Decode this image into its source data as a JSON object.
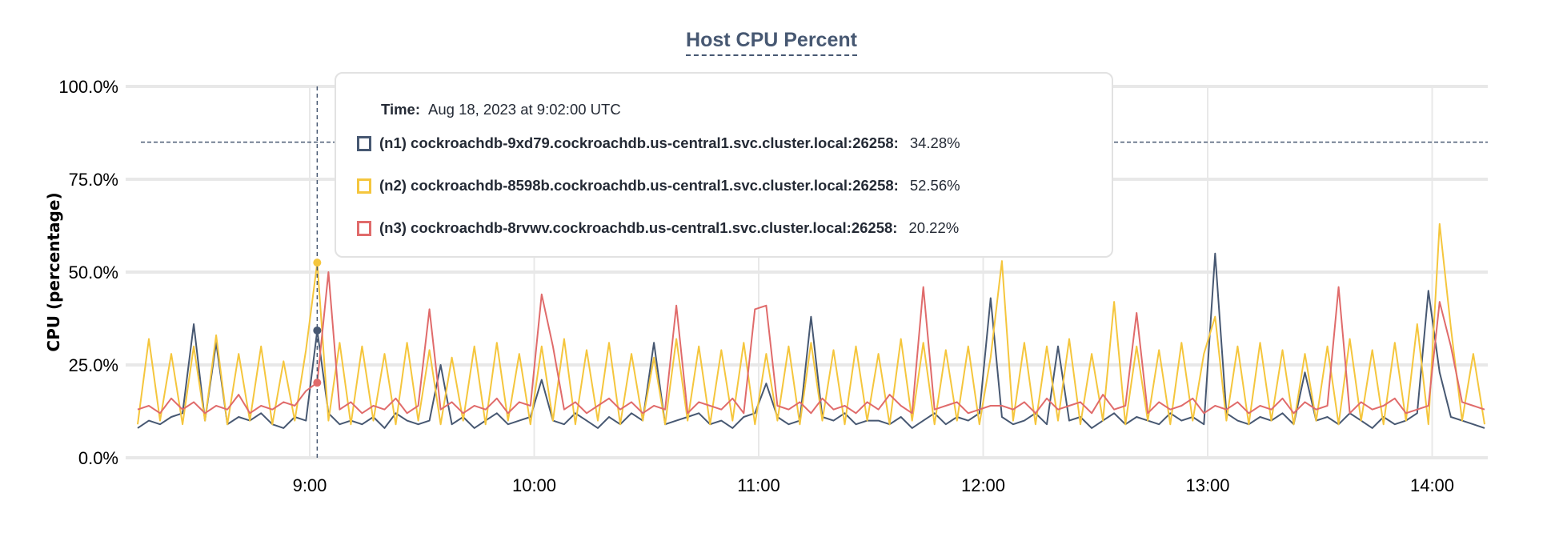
{
  "chart_data": {
    "type": "line",
    "title": "Host CPU Percent",
    "ylabel": "CPU (percentage)",
    "xlabel": "",
    "ylim": [
      0,
      100
    ],
    "yticks": [
      "0.0%",
      "25.0%",
      "50.0%",
      "75.0%",
      "100.0%"
    ],
    "xticks": [
      "9:00",
      "10:00",
      "11:00",
      "12:00",
      "13:00",
      "14:00"
    ],
    "xrange": [
      "08:10",
      "14:17"
    ],
    "threshold": 85,
    "grid": true,
    "hover_time": "09:02",
    "x": [
      "08:14",
      "08:17",
      "08:20",
      "08:23",
      "08:26",
      "08:29",
      "08:32",
      "08:35",
      "08:38",
      "08:41",
      "08:44",
      "08:47",
      "08:50",
      "08:53",
      "08:56",
      "08:59",
      "09:02",
      "09:05",
      "09:08",
      "09:11",
      "09:14",
      "09:17",
      "09:20",
      "09:23",
      "09:26",
      "09:29",
      "09:32",
      "09:35",
      "09:38",
      "09:41",
      "09:44",
      "09:47",
      "09:50",
      "09:53",
      "09:56",
      "09:59",
      "10:02",
      "10:05",
      "10:08",
      "10:11",
      "10:14",
      "10:17",
      "10:20",
      "10:23",
      "10:26",
      "10:29",
      "10:32",
      "10:35",
      "10:38",
      "10:41",
      "10:44",
      "10:47",
      "10:50",
      "10:53",
      "10:56",
      "10:59",
      "11:02",
      "11:05",
      "11:08",
      "11:11",
      "11:14",
      "11:17",
      "11:20",
      "11:23",
      "11:26",
      "11:29",
      "11:32",
      "11:35",
      "11:38",
      "11:41",
      "11:44",
      "11:47",
      "11:50",
      "11:53",
      "11:56",
      "11:59",
      "12:02",
      "12:05",
      "12:08",
      "12:11",
      "12:14",
      "12:17",
      "12:20",
      "12:23",
      "12:26",
      "12:29",
      "12:32",
      "12:35",
      "12:38",
      "12:41",
      "12:44",
      "12:47",
      "12:50",
      "12:53",
      "12:56",
      "12:59",
      "13:02",
      "13:05",
      "13:08",
      "13:11",
      "13:14",
      "13:17",
      "13:20",
      "13:23",
      "13:26",
      "13:29",
      "13:32",
      "13:35",
      "13:38",
      "13:41",
      "13:44",
      "13:47",
      "13:50",
      "13:53",
      "13:56",
      "13:59",
      "14:02",
      "14:05",
      "14:08",
      "14:11",
      "14:14"
    ],
    "series": [
      {
        "name": "(n1) cockroachdb-9xd79.cockroachdb.us-central1.svc.cluster.local:26258",
        "color": "#475872",
        "values": [
          8,
          10,
          9,
          11,
          12,
          36,
          10,
          31,
          9,
          11,
          10,
          12,
          9,
          8,
          11,
          10,
          34.28,
          12,
          9,
          10,
          9,
          11,
          8,
          12,
          10,
          9,
          10,
          25,
          9,
          11,
          8,
          10,
          12,
          9,
          10,
          11,
          21,
          10,
          9,
          12,
          10,
          8,
          11,
          9,
          12,
          10,
          31,
          9,
          10,
          11,
          12,
          9,
          10,
          8,
          11,
          12,
          20,
          11,
          9,
          10,
          38,
          11,
          10,
          12,
          9,
          10,
          10,
          9,
          11,
          8,
          10,
          12,
          9,
          11,
          10,
          12,
          43,
          11,
          9,
          10,
          12,
          9,
          30,
          10,
          11,
          8,
          10,
          12,
          9,
          11,
          10,
          9,
          12,
          10,
          11,
          9,
          55,
          12,
          10,
          9,
          11,
          10,
          12,
          9,
          23,
          10,
          11,
          9,
          12,
          10,
          8,
          11,
          9,
          10,
          12,
          45,
          23,
          11,
          10,
          9,
          8
        ]
      },
      {
        "name": "(n2) cockroachdb-8598b.cockroachdb.us-central1.svc.cluster.local:26258",
        "color": "#f5c63d",
        "values": [
          9,
          32,
          10,
          28,
          9,
          30,
          10,
          33,
          9,
          28,
          10,
          30,
          9,
          26,
          10,
          29,
          52.56,
          10,
          31,
          9,
          30,
          10,
          28,
          9,
          31,
          10,
          29,
          9,
          27,
          10,
          30,
          9,
          31,
          10,
          28,
          9,
          30,
          10,
          32,
          9,
          29,
          10,
          31,
          9,
          28,
          10,
          27,
          9,
          32,
          10,
          30,
          9,
          29,
          10,
          31,
          9,
          28,
          10,
          30,
          9,
          31,
          10,
          29,
          9,
          30,
          10,
          28,
          9,
          32,
          10,
          31,
          9,
          29,
          10,
          30,
          9,
          27,
          53,
          10,
          31,
          9,
          30,
          10,
          32,
          9,
          28,
          10,
          42,
          9,
          30,
          10,
          29,
          9,
          31,
          10,
          28,
          38,
          10,
          30,
          9,
          31,
          10,
          29,
          9,
          28,
          10,
          30,
          9,
          32,
          10,
          29,
          9,
          31,
          10,
          36,
          9,
          63,
          35,
          10,
          28,
          9
        ]
      },
      {
        "name": "(n3) cockroachdb-8rvwv.cockroachdb.us-central1.svc.cluster.local:26258",
        "color": "#e06b6b",
        "values": [
          13,
          14,
          12,
          16,
          13,
          15,
          12,
          14,
          13,
          17,
          12,
          14,
          13,
          15,
          14,
          18,
          20.22,
          50,
          13,
          15,
          12,
          14,
          13,
          16,
          12,
          14,
          40,
          13,
          15,
          12,
          14,
          13,
          16,
          12,
          15,
          14,
          44,
          30,
          13,
          15,
          12,
          14,
          16,
          13,
          15,
          12,
          14,
          13,
          41,
          12,
          15,
          14,
          13,
          16,
          12,
          40,
          41,
          14,
          13,
          15,
          12,
          16,
          13,
          14,
          12,
          15,
          13,
          17,
          14,
          12,
          46,
          13,
          14,
          15,
          12,
          13,
          14,
          14,
          13,
          15,
          12,
          16,
          13,
          14,
          15,
          12,
          17,
          13,
          14,
          39,
          12,
          15,
          13,
          14,
          16,
          12,
          14,
          13,
          15,
          12,
          14,
          13,
          16,
          12,
          15,
          13,
          14,
          46,
          12,
          15,
          13,
          14,
          16,
          12,
          13,
          14,
          42,
          30,
          15,
          14,
          13
        ]
      }
    ]
  },
  "tooltip": {
    "time_label": "Time:",
    "time_value": "Aug 18, 2023 at 9:02:00 UTC",
    "rows": [
      {
        "label": "(n1) cockroachdb-9xd79.cockroachdb.us-central1.svc.cluster.local:26258:",
        "value": "34.28%"
      },
      {
        "label": "(n2) cockroachdb-8598b.cockroachdb.us-central1.svc.cluster.local:26258:",
        "value": "52.56%"
      },
      {
        "label": "(n3) cockroachdb-8rvwv.cockroachdb.us-central1.svc.cluster.local:26258:",
        "value": "20.22%"
      }
    ]
  }
}
